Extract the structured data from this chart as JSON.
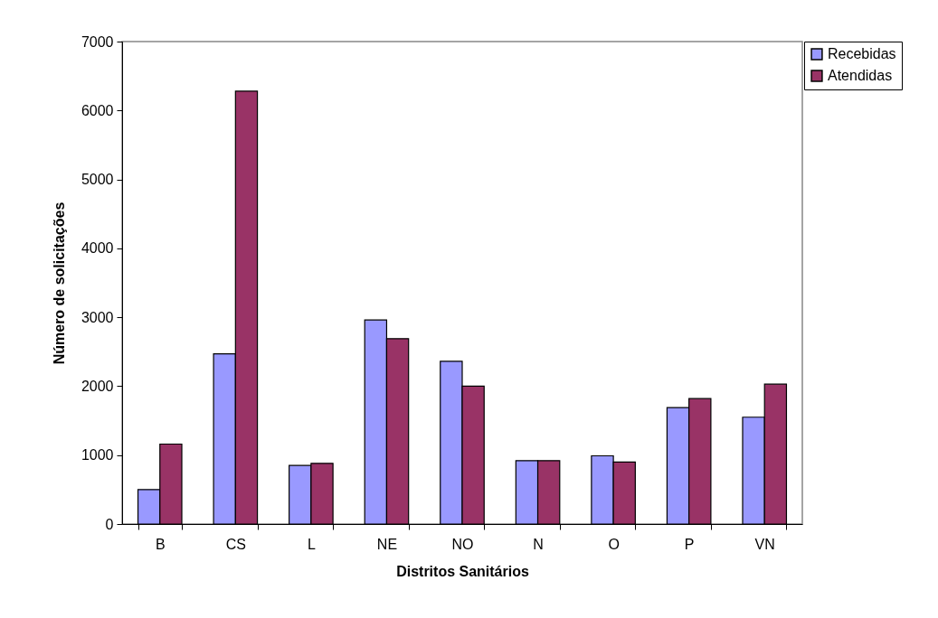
{
  "chart_data": {
    "type": "bar",
    "xlabel": "Distritos Sanitários",
    "ylabel": "Número de solicitações",
    "categories": [
      "B",
      "CS",
      "L",
      "NE",
      "NO",
      "N",
      "O",
      "P",
      "VN"
    ],
    "series": [
      {
        "name": "Recebidas",
        "color": "#9999ff",
        "values": [
          500,
          2470,
          850,
          2960,
          2360,
          920,
          990,
          1690,
          1550
        ]
      },
      {
        "name": "Atendidas",
        "color": "#993366",
        "values": [
          1160,
          6280,
          880,
          2690,
          2000,
          920,
          900,
          1820,
          2030
        ]
      }
    ],
    "ylim": [
      0,
      7000
    ],
    "yticks": [
      0,
      1000,
      2000,
      3000,
      4000,
      5000,
      6000,
      7000
    ],
    "grid": false,
    "legend": "right"
  }
}
